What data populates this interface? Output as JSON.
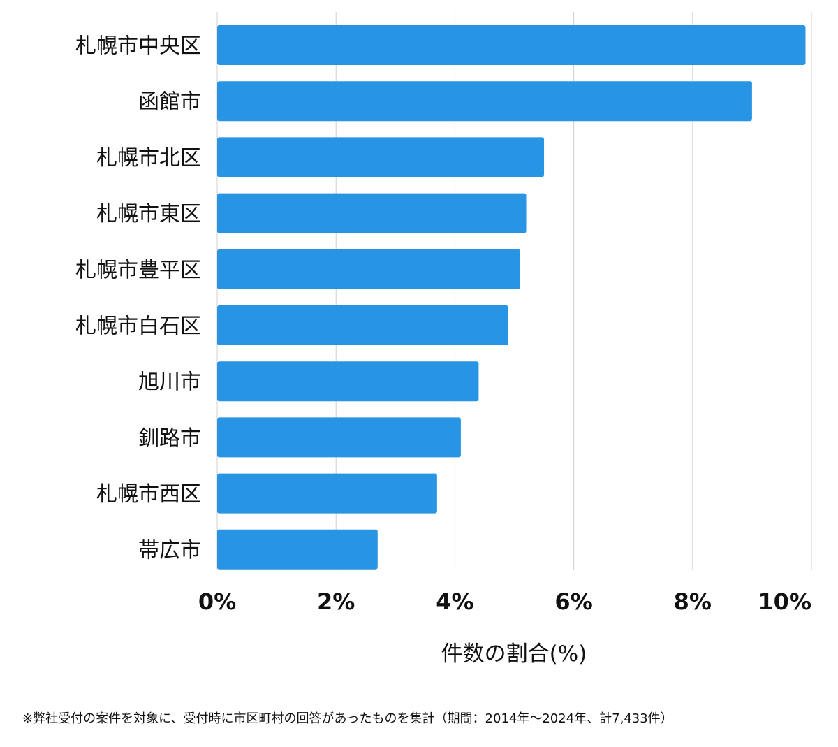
{
  "chart_data": {
    "type": "bar",
    "orientation": "horizontal",
    "categories": [
      "札幌市中央区",
      "函館市",
      "札幌市北区",
      "札幌市東区",
      "札幌市豊平区",
      "札幌市白石区",
      "旭川市",
      "釧路市",
      "札幌市西区",
      "帯広市"
    ],
    "values": [
      9.9,
      9.0,
      5.5,
      5.2,
      5.1,
      4.9,
      4.4,
      4.1,
      3.7,
      2.7
    ],
    "xlabel": "件数の割合(%)",
    "xlim": [
      0,
      10
    ],
    "x_ticks": [
      {
        "value": 0,
        "label": "0%"
      },
      {
        "value": 2,
        "label": "2%"
      },
      {
        "value": 4,
        "label": "4%"
      },
      {
        "value": 6,
        "label": "6%"
      },
      {
        "value": 8,
        "label": "8%"
      },
      {
        "value": 10,
        "label": "10%"
      }
    ],
    "grid": true,
    "bar_color": "#2894e4",
    "grid_color": "#d0d0d0"
  },
  "footnote": "※弊社受付の案件を対象に、受付時に市区町村の回答があったものを集計（期間：2014年～2024年、計7,433件）"
}
